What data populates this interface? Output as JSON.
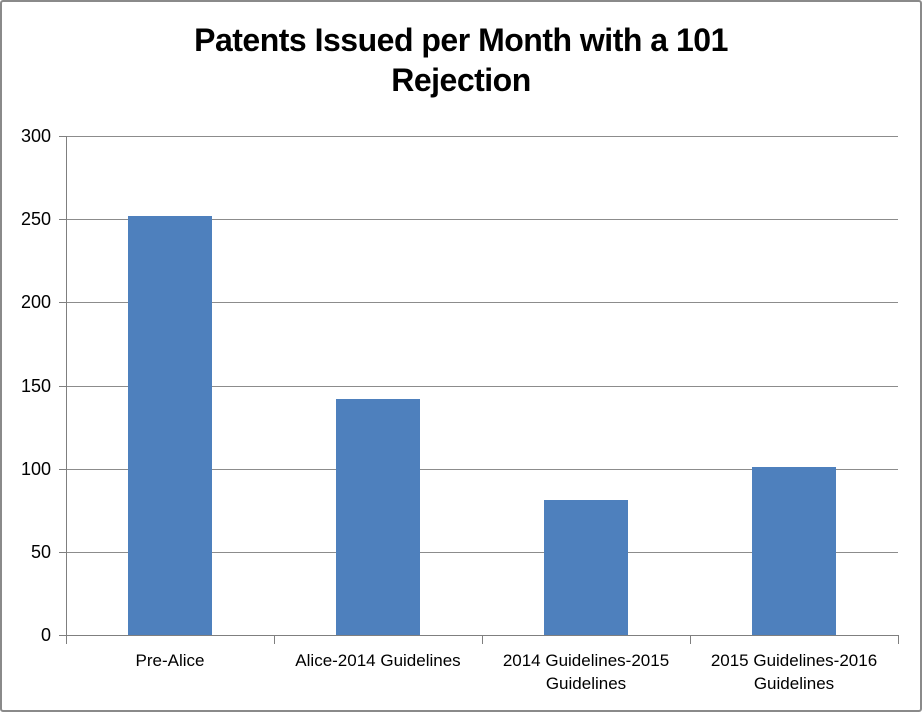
{
  "chart_data": {
    "type": "bar",
    "title": "Patents Issued per Month with a 101 Rejection",
    "title_lines": [
      "Patents Issued per Month with a 101",
      "Rejection"
    ],
    "categories": [
      "Pre-Alice",
      "Alice-2014 Guidelines",
      "2014 Guidelines-2015 Guidelines",
      "2015 Guidelines-2016 Guidelines"
    ],
    "values": [
      252,
      142,
      81,
      101
    ],
    "xlabel": "",
    "ylabel": "",
    "ylim": [
      0,
      300
    ],
    "yticks": [
      0,
      50,
      100,
      150,
      200,
      250,
      300
    ],
    "grid": true,
    "legend": false,
    "colors": {
      "bar": "#4E80BD",
      "gridline": "#8C8C8C",
      "axis": "#7F7F7F",
      "text": "#000000",
      "frame_border": "#8A8A8A",
      "background": "#FFFFFF"
    }
  }
}
